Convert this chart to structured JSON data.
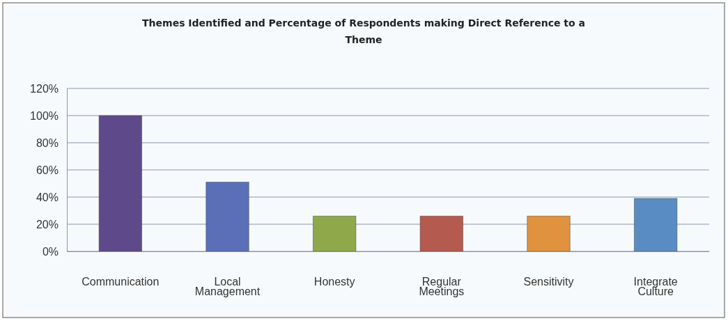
{
  "chart_data": {
    "type": "bar",
    "title": "Themes Identified and Percentage of Respondents making Direct Reference to a Theme",
    "categories": [
      "Communication",
      "Local Management",
      "Honesty",
      "Regular Meetings",
      "Sensitivity",
      "Integrate Culture"
    ],
    "values": [
      100,
      51,
      26,
      26,
      26,
      39
    ],
    "colors": [
      "#5e4a8a",
      "#5a6fb8",
      "#8fa94a",
      "#b55a4e",
      "#e0923e",
      "#5a8cc4"
    ],
    "ylim": [
      0,
      120
    ],
    "yticks": [
      {
        "value": 0,
        "label": "0%"
      },
      {
        "value": 20,
        "label": "20%"
      },
      {
        "value": 40,
        "label": "40%"
      },
      {
        "value": 60,
        "label": "60%"
      },
      {
        "value": 80,
        "label": "80%"
      },
      {
        "value": 100,
        "label": "100%"
      },
      {
        "value": 120,
        "label": "120%"
      }
    ],
    "grid": "y"
  }
}
